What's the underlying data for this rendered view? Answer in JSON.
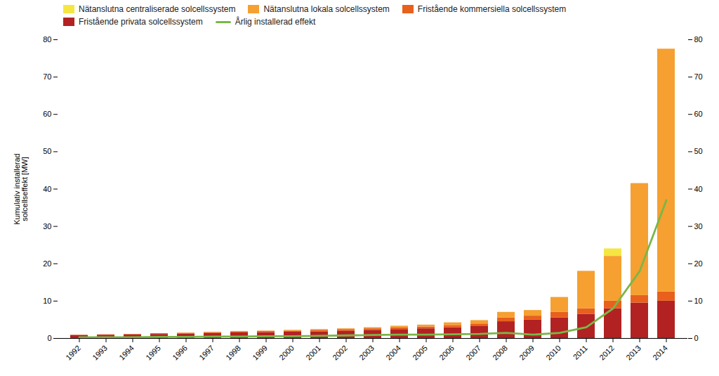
{
  "chart_data": {
    "type": "bar",
    "stacked": true,
    "legend": "upper left",
    "grid": false,
    "ylabel": "Kumulativ installerad\nsolcellseffekt [MW]",
    "categories": [
      "1992",
      "1993",
      "1994",
      "1995",
      "1996",
      "1997",
      "1998",
      "1999",
      "2000",
      "2001",
      "2002",
      "2003",
      "2004",
      "2005",
      "2006",
      "2007",
      "2008",
      "2009",
      "2010",
      "2011",
      "2012",
      "2013",
      "2014"
    ],
    "series": [
      {
        "name": "Fristående privata solcellssystem",
        "color": "#b22222",
        "values": [
          0.8,
          0.9,
          1.0,
          1.1,
          1.2,
          1.4,
          1.5,
          1.6,
          1.7,
          1.8,
          2.0,
          2.2,
          2.4,
          2.6,
          2.9,
          3.2,
          4.5,
          5.0,
          5.5,
          6.5,
          8.0,
          9.5,
          10.0
        ]
      },
      {
        "name": "Fristående kommersiella solcellssystem",
        "color": "#e8601c",
        "values": [
          0.1,
          0.1,
          0.1,
          0.2,
          0.2,
          0.2,
          0.3,
          0.3,
          0.3,
          0.4,
          0.4,
          0.4,
          0.5,
          0.5,
          0.6,
          0.7,
          1.0,
          1.0,
          1.5,
          1.5,
          2.0,
          2.0,
          2.5
        ]
      },
      {
        "name": "Nätanslutna lokala solcellssystem",
        "color": "#f5a030",
        "values": [
          0.0,
          0.0,
          0.0,
          0.0,
          0.1,
          0.1,
          0.1,
          0.1,
          0.2,
          0.2,
          0.2,
          0.3,
          0.4,
          0.5,
          0.7,
          0.9,
          1.5,
          1.5,
          4.0,
          10.0,
          12.0,
          30.0,
          65.0
        ]
      },
      {
        "name": "Nätanslutna centraliserade solcellssystem",
        "color": "#f5e642",
        "values": [
          0.0,
          0.0,
          0.0,
          0.0,
          0.0,
          0.0,
          0.0,
          0.0,
          0.0,
          0.0,
          0.0,
          0.0,
          0.0,
          0.0,
          0.0,
          0.0,
          0.0,
          0.0,
          0.0,
          0.0,
          2.0,
          0.0,
          0.0
        ]
      },
      {
        "name": "Årlig installerad effekt",
        "type": "line",
        "axis": "y2",
        "color": "#7ab648",
        "values": [
          0.3,
          0.3,
          0.3,
          0.4,
          0.4,
          0.5,
          0.5,
          0.6,
          0.6,
          0.7,
          0.8,
          0.9,
          1.0,
          1.0,
          1.1,
          1.2,
          1.5,
          1.0,
          1.5,
          3.0,
          8.0,
          18.0,
          37.0
        ]
      }
    ],
    "ylim": [
      0,
      80
    ],
    "yticks": [
      0,
      10,
      20,
      30,
      40,
      50,
      60,
      70,
      80
    ],
    "y2lim": [
      0,
      80
    ],
    "y2ticks": [
      0,
      10,
      20,
      30,
      40,
      50,
      60,
      70,
      80
    ]
  }
}
